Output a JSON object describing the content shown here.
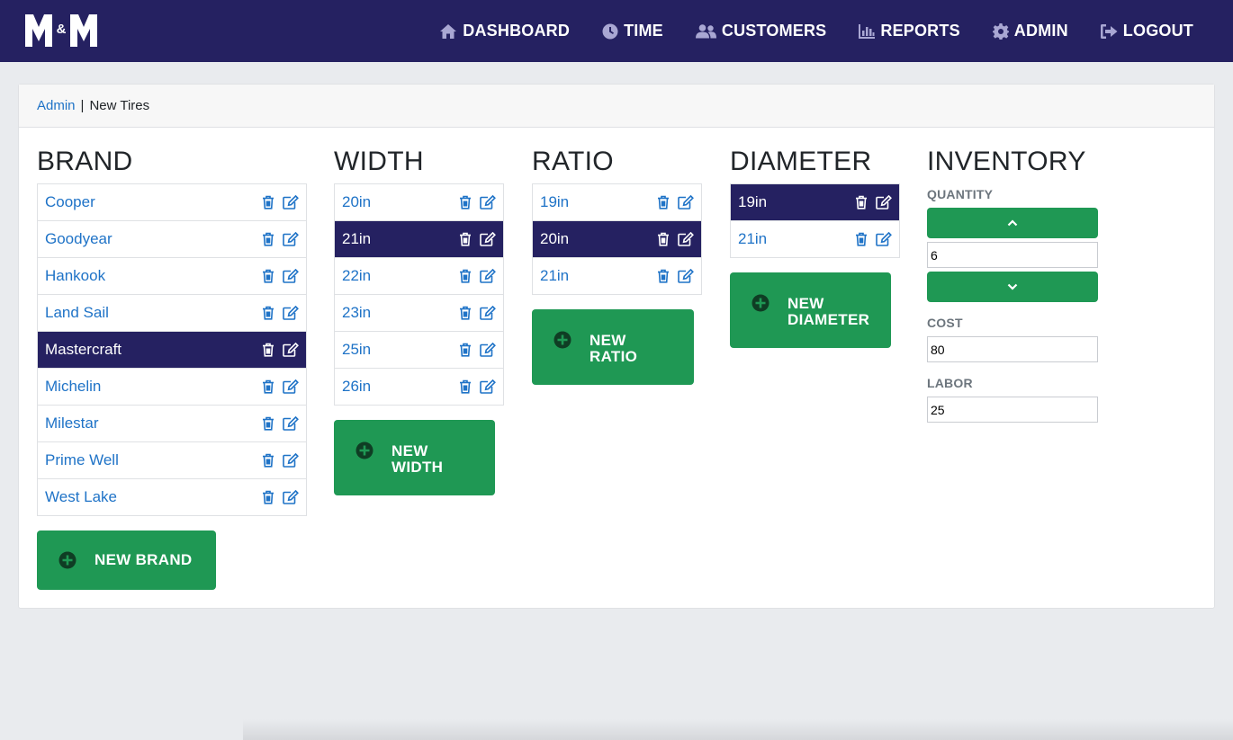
{
  "app": {
    "logo_text": "M&M"
  },
  "nav": [
    {
      "label": "DASHBOARD",
      "icon": "home-icon"
    },
    {
      "label": "TIME",
      "icon": "clock-icon"
    },
    {
      "label": "CUSTOMERS",
      "icon": "users-icon"
    },
    {
      "label": "REPORTS",
      "icon": "chart-icon"
    },
    {
      "label": "ADMIN",
      "icon": "gear-icon"
    },
    {
      "label": "LOGOUT",
      "icon": "logout-icon"
    }
  ],
  "breadcrumb": {
    "link": "Admin",
    "separator": "|",
    "current": "New Tires"
  },
  "brand": {
    "title": "BRAND",
    "items": [
      "Cooper",
      "Goodyear",
      "Hankook",
      "Land Sail",
      "Mastercraft",
      "Michelin",
      "Milestar",
      "Prime Well",
      "West Lake"
    ],
    "selected": "Mastercraft",
    "add_label": "NEW BRAND"
  },
  "width": {
    "title": "WIDTH",
    "items": [
      "20in",
      "21in",
      "22in",
      "23in",
      "25in",
      "26in"
    ],
    "selected": "21in",
    "add_label_1": "NEW",
    "add_label_2": "WIDTH"
  },
  "ratio": {
    "title": "RATIO",
    "items": [
      "19in",
      "20in",
      "21in"
    ],
    "selected": "20in",
    "add_label_1": "NEW",
    "add_label_2": "RATIO"
  },
  "diameter": {
    "title": "DIAMETER",
    "items": [
      "19in",
      "21in"
    ],
    "selected": "19in",
    "add_label_1": "NEW",
    "add_label_2": "DIAMETER"
  },
  "inventory": {
    "title": "INVENTORY",
    "quantity_label": "QUANTITY",
    "quantity_value": "6",
    "cost_label": "COST",
    "cost_value": "80",
    "labor_label": "LABOR",
    "labor_value": "25"
  },
  "colors": {
    "navbar": "#252161",
    "selected_row": "#252161",
    "link": "#1f73c7",
    "button_green": "#1f9854",
    "background": "#e9ebee"
  }
}
